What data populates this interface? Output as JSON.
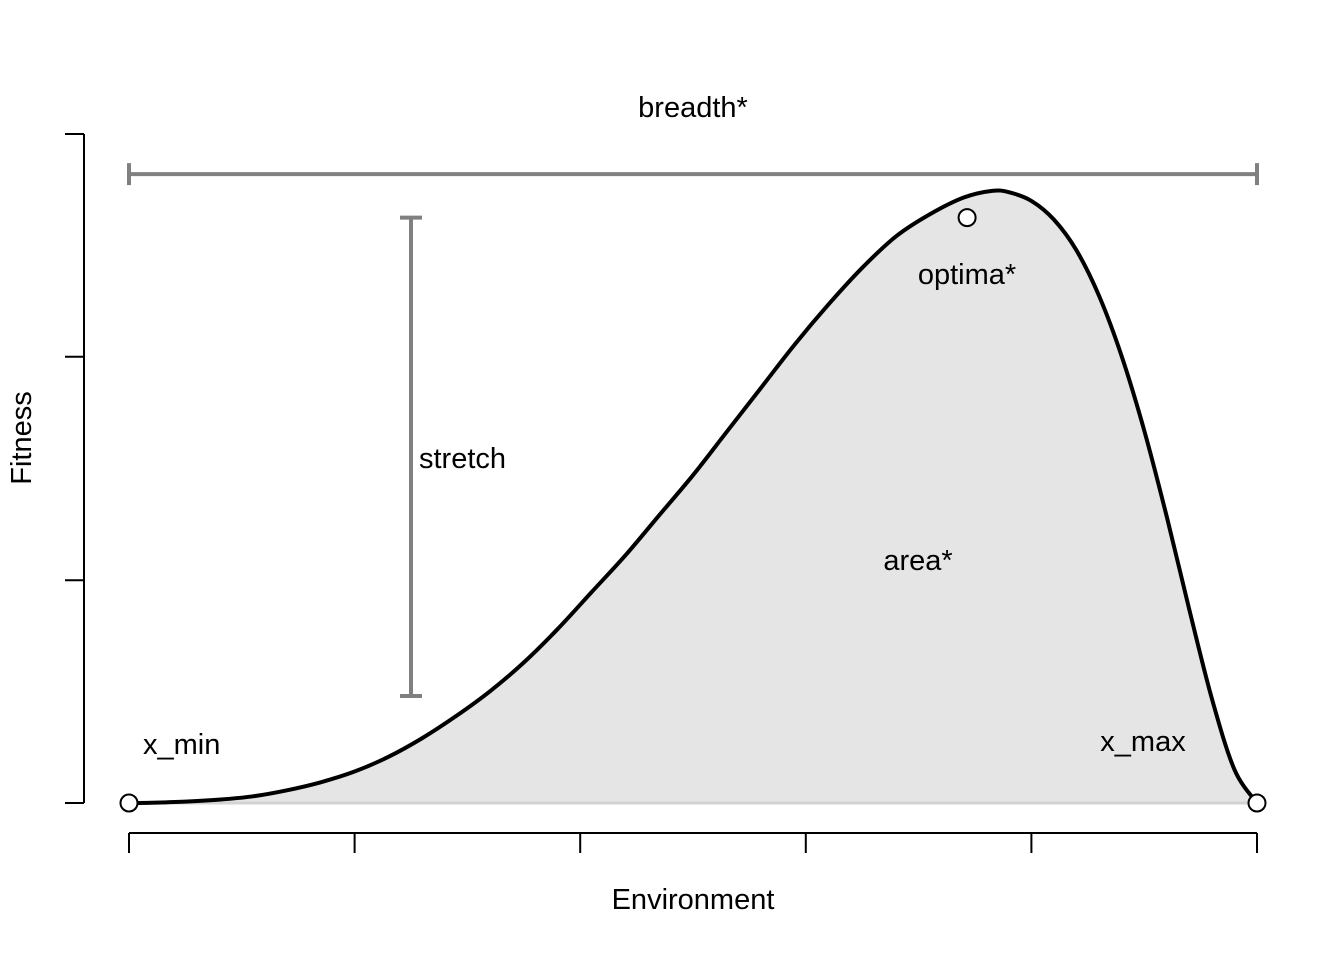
{
  "chart_data": {
    "type": "area",
    "xlabel": "Environment",
    "ylabel": "Fitness",
    "xlim": [
      0,
      1
    ],
    "ylim": [
      0,
      1
    ],
    "x_ticks": [
      0,
      0.2,
      0.4,
      0.6,
      0.8,
      1.0
    ],
    "y_ticks": [
      0,
      0.333,
      0.667,
      1.0
    ],
    "tick_labels_shown": false,
    "grid": false,
    "x": [
      0,
      0.02,
      0.05,
      0.08,
      0.11,
      0.14,
      0.17,
      0.2,
      0.23,
      0.26,
      0.29,
      0.32,
      0.35,
      0.38,
      0.41,
      0.44,
      0.47,
      0.5,
      0.53,
      0.56,
      0.59,
      0.62,
      0.65,
      0.68,
      0.71,
      0.74,
      0.765,
      0.78,
      0.8,
      0.82,
      0.84,
      0.86,
      0.88,
      0.9,
      0.92,
      0.94,
      0.96,
      0.98,
      1.0
    ],
    "y": [
      0,
      0.0004,
      0.002,
      0.005,
      0.01,
      0.019,
      0.031,
      0.047,
      0.069,
      0.097,
      0.13,
      0.167,
      0.21,
      0.26,
      0.315,
      0.37,
      0.43,
      0.49,
      0.555,
      0.62,
      0.685,
      0.745,
      0.8,
      0.847,
      0.88,
      0.905,
      0.915,
      0.913,
      0.9,
      0.872,
      0.826,
      0.758,
      0.668,
      0.557,
      0.428,
      0.289,
      0.156,
      0.05,
      0
    ],
    "points": [
      {
        "name": "x_min",
        "x": 0,
        "y": 0
      },
      {
        "name": "optima",
        "x": 0.743,
        "y": 0.875
      },
      {
        "name": "x_max",
        "x": 1.0,
        "y": 0
      }
    ],
    "annotations": {
      "breadth": {
        "label": "breadth*",
        "x_from": 0,
        "x_to": 1.0,
        "y": 0.94
      },
      "stretch": {
        "label": "stretch",
        "x": 0.25,
        "y_from": 0.16,
        "y_to": 0.875
      },
      "optima": {
        "label": "optima*"
      },
      "area": {
        "label": "area*"
      },
      "x_min": {
        "label": "x_min"
      },
      "x_max": {
        "label": "x_max"
      }
    },
    "colors": {
      "fill": "#e5e5e5",
      "curve": "#000000",
      "annotation": "#808080"
    }
  }
}
